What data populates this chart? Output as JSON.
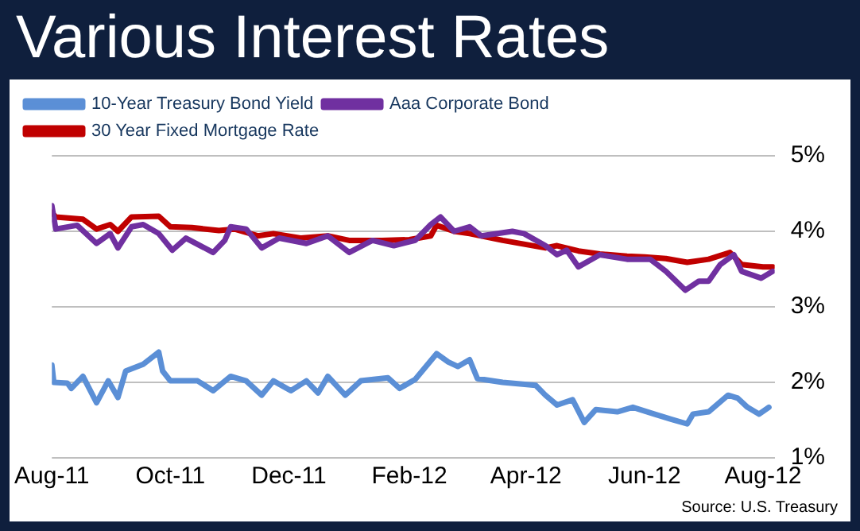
{
  "chart_data": {
    "type": "line",
    "title": "Various Interest Rates",
    "annotations": [
      "Source: U.S. Treasury"
    ],
    "xlim": [
      "2011-08-01",
      "2012-08-07"
    ],
    "xticks": [
      {
        "value": "2011-08-01",
        "label": "Aug-11"
      },
      {
        "value": "2011-10-01",
        "label": "Oct-11"
      },
      {
        "value": "2011-12-01",
        "label": "Dec-11"
      },
      {
        "value": "2012-02-01",
        "label": "Feb-12"
      },
      {
        "value": "2012-04-01",
        "label": "Apr-12"
      },
      {
        "value": "2012-06-01",
        "label": "Jun-12"
      },
      {
        "value": "2012-08-01",
        "label": "Aug-12"
      }
    ],
    "ylim": [
      1,
      5
    ],
    "yticks": [
      {
        "value": 1,
        "label": "1%"
      },
      {
        "value": 2,
        "label": "2%"
      },
      {
        "value": 3,
        "label": "3%"
      },
      {
        "value": 4,
        "label": "4%"
      },
      {
        "value": 5,
        "label": "5%"
      }
    ],
    "grid": "y",
    "legend": "top",
    "marker": "none",
    "line_style": "solid",
    "series": [
      {
        "name": "10-Year Treasury Bond Yield",
        "color": "#5b8fd6",
        "x": [
          "2011-08-01",
          "2011-08-02",
          "2011-08-09",
          "2011-08-11",
          "2011-08-17",
          "2011-08-24",
          "2011-08-30",
          "2011-09-04",
          "2011-09-08",
          "2011-09-17",
          "2011-09-25",
          "2011-09-27",
          "2011-10-01",
          "2011-10-15",
          "2011-10-23",
          "2011-11-01",
          "2011-11-09",
          "2011-11-17",
          "2011-11-23",
          "2011-12-02",
          "2011-12-10",
          "2011-12-16",
          "2011-12-21",
          "2011-12-30",
          "2012-01-07",
          "2012-01-21",
          "2012-01-27",
          "2012-02-04",
          "2012-02-15",
          "2012-02-21",
          "2012-02-26",
          "2012-03-03",
          "2012-03-07",
          "2012-03-20",
          "2012-04-06",
          "2012-04-11",
          "2012-04-17",
          "2012-04-25",
          "2012-05-01",
          "2012-05-07",
          "2012-05-18",
          "2012-05-26",
          "2012-06-06",
          "2012-06-15",
          "2012-06-23",
          "2012-06-26",
          "2012-07-04",
          "2012-07-14",
          "2012-07-19",
          "2012-07-24",
          "2012-07-30",
          "2012-08-04"
        ],
        "values": [
          2.23,
          2.0,
          1.99,
          1.92,
          2.08,
          1.73,
          2.02,
          1.8,
          2.15,
          2.24,
          2.4,
          2.15,
          2.02,
          2.02,
          1.89,
          2.08,
          2.02,
          1.83,
          2.02,
          1.89,
          2.02,
          1.86,
          2.08,
          1.83,
          2.02,
          2.06,
          1.92,
          2.04,
          2.38,
          2.27,
          2.21,
          2.3,
          2.05,
          2.0,
          1.96,
          1.83,
          1.7,
          1.77,
          1.47,
          1.64,
          1.61,
          1.67,
          1.58,
          1.51,
          1.45,
          1.58,
          1.61,
          1.83,
          1.79,
          1.67,
          1.58,
          1.67
        ]
      },
      {
        "name": "Aaa Corporate Bond",
        "color": "#7030a0",
        "x": [
          "2011-08-01",
          "2011-08-03",
          "2011-08-14",
          "2011-08-24",
          "2011-08-31",
          "2011-09-04",
          "2011-09-11",
          "2011-09-17",
          "2011-09-25",
          "2011-10-02",
          "2011-10-09",
          "2011-10-23",
          "2011-10-29",
          "2011-11-01",
          "2011-11-09",
          "2011-11-17",
          "2011-11-26",
          "2011-12-10",
          "2011-12-21",
          "2012-01-01",
          "2012-01-13",
          "2012-01-24",
          "2012-02-04",
          "2012-02-12",
          "2012-02-17",
          "2012-02-24",
          "2012-03-03",
          "2012-03-09",
          "2012-03-25",
          "2012-03-31",
          "2012-04-11",
          "2012-04-17",
          "2012-04-22",
          "2012-04-28",
          "2012-05-09",
          "2012-05-23",
          "2012-06-04",
          "2012-06-12",
          "2012-06-22",
          "2012-06-29",
          "2012-07-04",
          "2012-07-10",
          "2012-07-17",
          "2012-07-21",
          "2012-07-31",
          "2012-08-06"
        ],
        "values": [
          4.34,
          4.03,
          4.08,
          3.84,
          3.97,
          3.78,
          4.06,
          4.09,
          3.97,
          3.75,
          3.91,
          3.72,
          3.88,
          4.06,
          4.03,
          3.78,
          3.91,
          3.84,
          3.94,
          3.72,
          3.88,
          3.81,
          3.88,
          4.09,
          4.19,
          4.0,
          4.06,
          3.94,
          4.0,
          3.97,
          3.81,
          3.69,
          3.75,
          3.53,
          3.69,
          3.63,
          3.63,
          3.47,
          3.22,
          3.34,
          3.34,
          3.56,
          3.69,
          3.47,
          3.38,
          3.47
        ]
      },
      {
        "name": "30 Year Fixed Mortgage Rate",
        "color": "#c00000",
        "x": [
          "2011-08-01",
          "2011-08-03",
          "2011-08-17",
          "2011-08-24",
          "2011-08-31",
          "2011-09-04",
          "2011-09-11",
          "2011-09-25",
          "2011-10-01",
          "2011-10-12",
          "2011-10-26",
          "2011-11-03",
          "2011-11-15",
          "2011-11-23",
          "2011-12-07",
          "2011-12-21",
          "2012-01-01",
          "2012-01-18",
          "2012-02-01",
          "2012-02-12",
          "2012-02-15",
          "2012-02-24",
          "2012-03-03",
          "2012-03-09",
          "2012-03-20",
          "2012-03-31",
          "2012-04-11",
          "2012-04-17",
          "2012-04-28",
          "2012-05-09",
          "2012-05-23",
          "2012-06-01",
          "2012-06-12",
          "2012-06-23",
          "2012-07-04",
          "2012-07-15",
          "2012-07-21",
          "2012-08-01",
          "2012-08-06"
        ],
        "values": [
          4.25,
          4.19,
          4.16,
          4.03,
          4.09,
          4.0,
          4.19,
          4.2,
          4.06,
          4.05,
          4.01,
          4.03,
          3.94,
          3.97,
          3.91,
          3.94,
          3.88,
          3.88,
          3.89,
          3.94,
          4.08,
          4.0,
          3.97,
          3.94,
          3.88,
          3.83,
          3.78,
          3.81,
          3.74,
          3.7,
          3.67,
          3.66,
          3.64,
          3.59,
          3.63,
          3.72,
          3.56,
          3.53,
          3.53
        ]
      }
    ]
  }
}
